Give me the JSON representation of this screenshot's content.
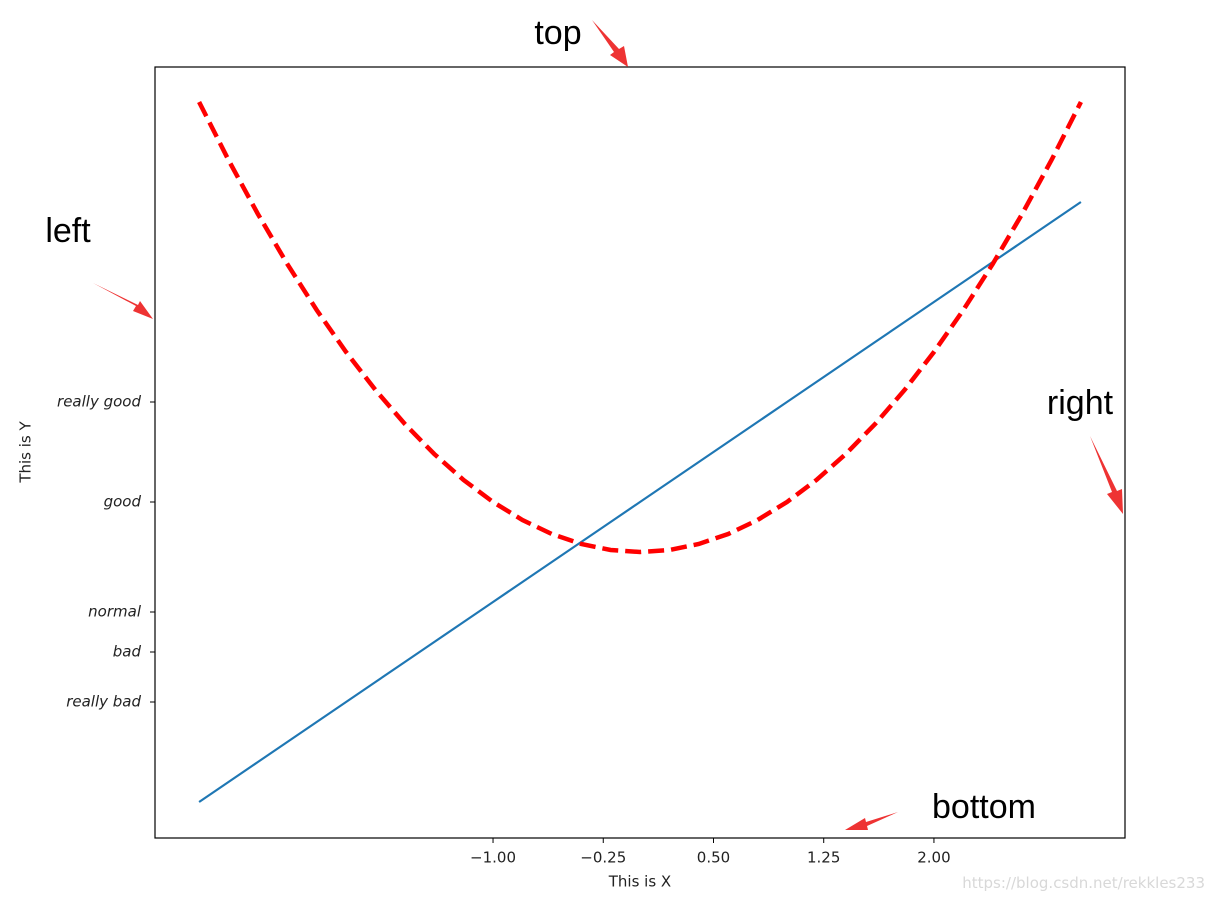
{
  "chart_data": {
    "type": "line",
    "x_label": "This is X",
    "y_label": "This is Y",
    "x": [
      -3,
      -2.8,
      -2.6,
      -2.4,
      -2.2,
      -2,
      -1.8,
      -1.6,
      -1.4,
      -1.2,
      -1,
      -0.8,
      -0.6,
      -0.4,
      -0.2,
      0,
      0.2,
      0.4,
      0.6,
      0.8,
      1,
      1.2,
      1.4,
      1.6,
      1.8,
      2,
      2.2,
      2.4,
      2.6,
      2.8,
      3
    ],
    "series": [
      {
        "color": "#1f77b4",
        "linestyle": "solid",
        "values": [
          -5,
          -4.6,
          -4.2,
          -3.8,
          -3.4,
          -3,
          -2.6,
          -2.2,
          -1.8,
          -1.4,
          -1,
          -0.6,
          -0.2,
          0.2,
          0.6,
          1,
          1.4,
          1.8,
          2.2,
          2.6,
          3,
          3.4,
          3.8,
          4.2,
          4.6,
          5,
          5.4,
          5.8,
          6.2,
          6.6,
          7
        ]
      },
      {
        "color": "#ff0000",
        "linestyle": "dashed",
        "values": [
          9,
          7.84,
          6.76,
          5.76,
          4.84,
          4,
          3.24,
          2.56,
          1.96,
          1.44,
          1,
          0.64,
          0.36,
          0.16,
          0.04,
          0,
          0.04,
          0.16,
          0.36,
          0.64,
          1,
          1.44,
          1.96,
          2.56,
          3.24,
          4,
          4.84,
          5.76,
          6.76,
          7.84,
          9
        ]
      }
    ],
    "xlim": [
      -3.3,
      3.3
    ],
    "ylim": [
      -5.72,
      9.7
    ],
    "xticks": [
      {
        "value": -1,
        "label": "−1.00"
      },
      {
        "value": -0.25,
        "label": "−0.25"
      },
      {
        "value": 0.5,
        "label": "0.50"
      },
      1.25,
      {
        "value": 2,
        "label": "2.00"
      }
    ],
    "yticks": [
      {
        "value": -3,
        "label": "really bad"
      },
      {
        "value": -2,
        "label": "bad"
      },
      {
        "value": -1.2,
        "label": "normal"
      },
      {
        "value": 1,
        "label": "good"
      },
      {
        "value": 3,
        "label": "really good"
      }
    ],
    "annotations": {
      "top": "top",
      "left": "left",
      "right": "right",
      "bottom": "bottom"
    },
    "watermark": "https://blog.csdn.net/rekkles233"
  }
}
